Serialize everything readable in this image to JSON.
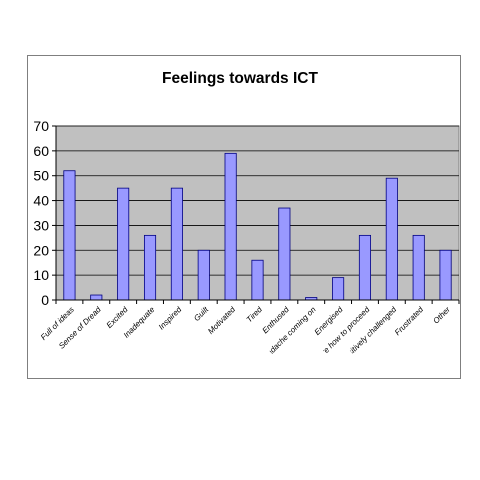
{
  "chart_data": {
    "type": "bar",
    "title": "Feelings towards ICT",
    "xlabel": "",
    "ylabel": "",
    "categories": [
      "Full of ideas",
      "Sense of Dread",
      "Excited",
      "Inadequate",
      "Inspired",
      "Guilt",
      "Motivated",
      "Tired",
      "Enthused",
      "Headache coming on",
      "Energised",
      "Unsure how to proceed",
      "Positively challenged",
      "Frustrated",
      "Other"
    ],
    "values": [
      52,
      2,
      45,
      26,
      45,
      20,
      59,
      16,
      37,
      1,
      9,
      26,
      49,
      26,
      20
    ],
    "ylim": [
      0,
      70
    ],
    "yticks": [
      0,
      10,
      20,
      30,
      40,
      50,
      60,
      70
    ],
    "grid": true,
    "legend": "none",
    "colors": {
      "bar_fill": "#9999ff",
      "bar_stroke": "#000080",
      "plot_background": "#c0c0c0",
      "gridline": "#000000",
      "frame": "#7f7f7f"
    }
  }
}
